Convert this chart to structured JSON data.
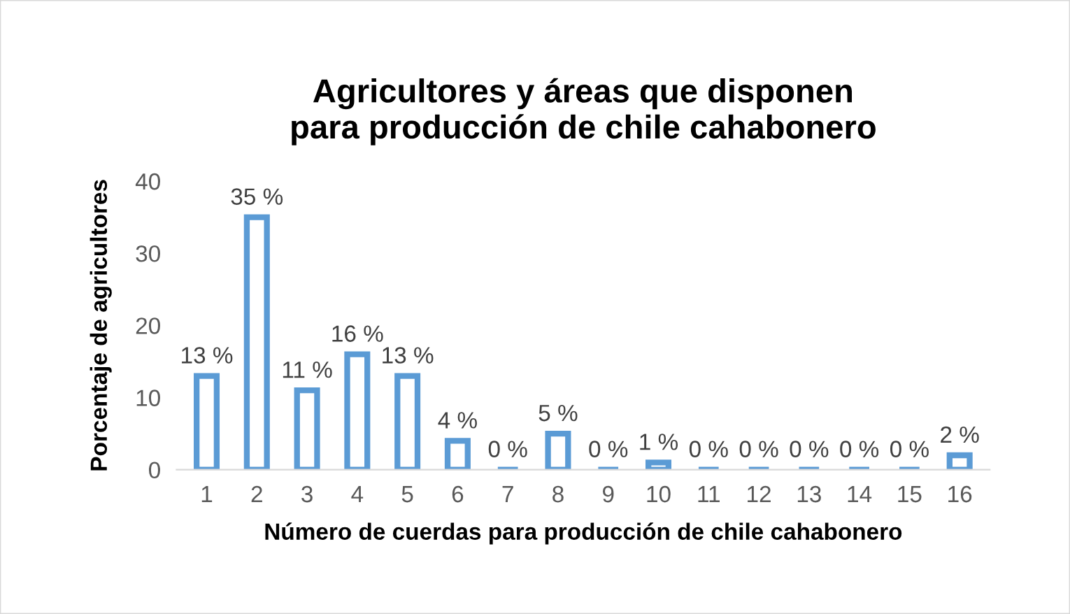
{
  "chart_data": {
    "type": "bar",
    "title": "Agricultores y áreas que disponen\npara producción de chile cahabonero",
    "xlabel": "Número de cuerdas para producción de chile cahabonero",
    "ylabel": "Porcentaje de agricultores",
    "categories": [
      "1",
      "2",
      "3",
      "4",
      "5",
      "6",
      "7",
      "8",
      "9",
      "10",
      "11",
      "12",
      "13",
      "14",
      "15",
      "16"
    ],
    "values": [
      13,
      35,
      11,
      16,
      13,
      4,
      0,
      5,
      0,
      1,
      0,
      0,
      0,
      0,
      0,
      2
    ],
    "value_labels": [
      "13 %",
      "35 %",
      "11 %",
      "16 %",
      "13 %",
      "4 %",
      "0 %",
      "5 %",
      "0 %",
      "1 %",
      "0 %",
      "0 %",
      "0 %",
      "0 %",
      "0 %",
      "2 %"
    ],
    "color": "#5b9bd5",
    "ylim": [
      0,
      40
    ],
    "yticks": [
      0,
      10,
      20,
      30,
      40
    ],
    "grid": false,
    "legend": false
  }
}
